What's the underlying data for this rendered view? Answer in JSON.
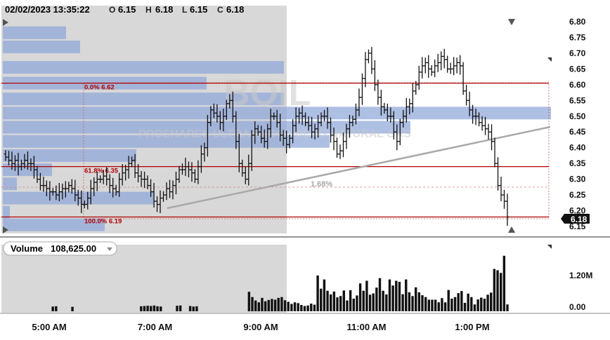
{
  "header": {
    "datetime": "02/02/2023 13:35:22",
    "open_key": "O",
    "open": "6.15",
    "high_key": "H",
    "high": "6.18",
    "low_key": "L",
    "low": "6.15",
    "close_key": "C",
    "close": "6.18"
  },
  "watermark": {
    "symbol": "BOIL",
    "name": "PROSHARES ULTRA BLOOMBERG NATURAL GAS"
  },
  "last_price": "6.18",
  "trendline_label": "1.68%",
  "fib_levels": [
    {
      "label": "0.0% 6.62",
      "price": 6.605
    },
    {
      "label": "61.8% 6.35",
      "price": 6.34
    },
    {
      "label": "100.0% 6.19",
      "price": 6.18
    }
  ],
  "volume_panel": {
    "title_key": "Volume",
    "title_value": "108,625.00",
    "ticks": [
      "1.20M",
      "0.00"
    ]
  },
  "colors": {
    "fib_line": "#b00000",
    "volume_profile": "#8fa6da",
    "session_shade": "#d8d8d8",
    "trendline": "#a8a8a8",
    "bars": "#111111",
    "last_label_bg": "#111111"
  },
  "chart_data": [
    {
      "type": "ohlc",
      "title": "",
      "time_axis_labels": [
        "5:00 AM",
        "7:00 AM",
        "9:00 AM",
        "11:00 AM",
        "1:00 PM"
      ],
      "y_tick_labels": [
        "6.80",
        "6.75",
        "6.70",
        "6.65",
        "6.60",
        "6.55",
        "6.50",
        "6.45",
        "6.40",
        "6.35",
        "6.30",
        "6.25",
        "6.20",
        "6.15"
      ],
      "ylim": [
        6.13,
        6.83
      ],
      "premarket_shaded_until": "9:30 AM",
      "grid": false,
      "bars_close": [
        6.37,
        6.36,
        6.35,
        6.36,
        6.34,
        6.35,
        6.36,
        6.35,
        6.35,
        6.33,
        6.3,
        6.28,
        6.28,
        6.27,
        6.26,
        6.26,
        6.25,
        6.26,
        6.27,
        6.27,
        6.28,
        6.27,
        6.25,
        6.24,
        6.22,
        6.22,
        6.24,
        6.27,
        6.29,
        6.3,
        6.3,
        6.31,
        6.3,
        6.28,
        6.27,
        6.26,
        6.3,
        6.32,
        6.33,
        6.35,
        6.36,
        6.32,
        6.31,
        6.3,
        6.3,
        6.28,
        6.26,
        6.23,
        6.22,
        6.24,
        6.25,
        6.27,
        6.26,
        6.28,
        6.3,
        6.33,
        6.33,
        6.34,
        6.33,
        6.32,
        6.3,
        6.34,
        6.38,
        6.4,
        6.48,
        6.52,
        6.51,
        6.5,
        6.48,
        6.5,
        6.54,
        6.55,
        6.5,
        6.42,
        6.35,
        6.32,
        6.3,
        6.35,
        6.44,
        6.46,
        6.45,
        6.43,
        6.42,
        6.46,
        6.5,
        6.5,
        6.48,
        6.44,
        6.43,
        6.41,
        6.43,
        6.47,
        6.5,
        6.51,
        6.5,
        6.48,
        6.47,
        6.45,
        6.46,
        6.48,
        6.5,
        6.5,
        6.48,
        6.44,
        6.42,
        6.38,
        6.39,
        6.42,
        6.46,
        6.48,
        6.49,
        6.52,
        6.56,
        6.62,
        6.68,
        6.7,
        6.65,
        6.6,
        6.56,
        6.53,
        6.52,
        6.5,
        6.5,
        6.45,
        6.42,
        6.48,
        6.5,
        6.53,
        6.54,
        6.58,
        6.6,
        6.64,
        6.66,
        6.67,
        6.65,
        6.64,
        6.66,
        6.67,
        6.69,
        6.68,
        6.65,
        6.65,
        6.66,
        6.67,
        6.66,
        6.58,
        6.55,
        6.52,
        6.5,
        6.5,
        6.48,
        6.47,
        6.46,
        6.45,
        6.42,
        6.35,
        6.28,
        6.25,
        6.23,
        6.18
      ],
      "volume_axis": {
        "ticks": [
          "1.20M",
          "0.00"
        ],
        "ylim": [
          0,
          1800000
        ]
      },
      "volume": [
        0,
        0,
        0,
        0,
        0,
        0,
        0,
        0,
        0,
        0,
        0,
        0,
        0,
        0,
        20000,
        30000,
        0,
        0,
        0,
        0,
        10000,
        0,
        0,
        0,
        0,
        0,
        0,
        0,
        0,
        0,
        0,
        0,
        0,
        0,
        0,
        0,
        0,
        0,
        0,
        0,
        0,
        30000,
        40000,
        50000,
        40000,
        60000,
        30000,
        20000,
        0,
        0,
        0,
        0,
        50000,
        60000,
        0,
        0,
        40000,
        20000,
        30000,
        0,
        0,
        0,
        0,
        0,
        0,
        0,
        0,
        0,
        0,
        0,
        0,
        0,
        0,
        0,
        580000,
        380000,
        250000,
        180000,
        350000,
        220000,
        270000,
        310000,
        280000,
        350000,
        380000,
        260000,
        200000,
        120000,
        180000,
        150000,
        80000,
        40000,
        60000,
        130000,
        90000,
        1200000,
        700000,
        1050000,
        620000,
        480000,
        590000,
        370000,
        420000,
        630000,
        250000,
        640000,
        320000,
        440000,
        900000,
        620000,
        1000000,
        470000,
        520000,
        740000,
        1100000,
        620000,
        480000,
        1050000,
        820000,
        1000000,
        960000,
        490000,
        1050000,
        560000,
        420000,
        750000,
        560000,
        450000,
        380000,
        280000,
        280000,
        280000,
        180000,
        340000,
        180000,
        650000,
        320000,
        380000,
        530000,
        610000,
        160000,
        510000,
        380000,
        100000,
        290000,
        360000,
        320000,
        470000,
        550000,
        1450000,
        1400000,
        1300000,
        1950000,
        100000
      ]
    }
  ]
}
